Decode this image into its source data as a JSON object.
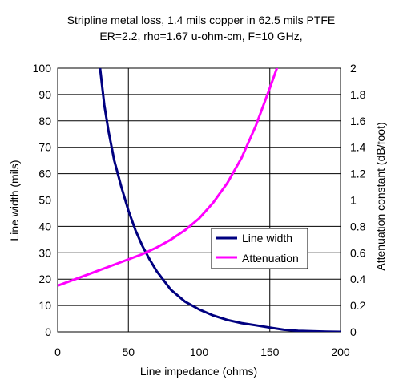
{
  "chart_data": {
    "type": "line",
    "title_lines": [
      "Stripline metal loss, 1.4 mils copper in 62.5 mils PTFE",
      "ER=2.2, rho=1.67 u-ohm-cm, F=10 GHz,"
    ],
    "xlabel": "Line impedance (ohms)",
    "ylabel_left": "Line width (mils)",
    "ylabel_right": "Attenuation constant (dB/foot)",
    "xlim": [
      0,
      200
    ],
    "ylim_left": [
      0,
      100
    ],
    "ylim_right": [
      0,
      2
    ],
    "x_ticks": [
      "0",
      "50",
      "100",
      "150",
      "200"
    ],
    "y_left_ticks": [
      "0",
      "10",
      "20",
      "30",
      "40",
      "50",
      "60",
      "70",
      "80",
      "90",
      "100"
    ],
    "y_right_ticks": [
      "0",
      "0.2",
      "0.4",
      "0.6",
      "0.8",
      "1",
      "1.2",
      "1.4",
      "1.6",
      "1.8",
      "2"
    ],
    "grid": "horizontal and vertical major gridlines",
    "legend_position": "center-right",
    "series": [
      {
        "name": "Line width",
        "axis": "left",
        "color": "#000080",
        "x": [
          30,
          33,
          36,
          40,
          45,
          50,
          55,
          60,
          65,
          70,
          75,
          80,
          90,
          100,
          110,
          120,
          130,
          140,
          150,
          160,
          170,
          180,
          190,
          200
        ],
        "y": [
          100,
          86,
          76,
          65,
          55,
          46,
          38.5,
          32.5,
          27.5,
          23,
          19.5,
          16,
          11.5,
          8.5,
          6.2,
          4.5,
          3.3,
          2.5,
          1.6,
          0.8,
          0.4,
          0.2,
          0.05,
          0
        ]
      },
      {
        "name": "Attenuation",
        "axis": "right",
        "color": "#ff00ff",
        "x": [
          0,
          10,
          20,
          30,
          40,
          50,
          60,
          70,
          80,
          90,
          100,
          110,
          120,
          130,
          140,
          150,
          155
        ],
        "y": [
          0.35,
          0.39,
          0.43,
          0.47,
          0.51,
          0.55,
          0.59,
          0.64,
          0.7,
          0.77,
          0.86,
          0.98,
          1.13,
          1.32,
          1.56,
          1.85,
          2.0
        ]
      }
    ]
  }
}
